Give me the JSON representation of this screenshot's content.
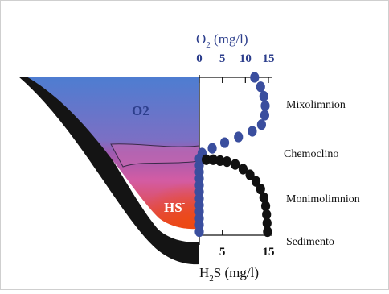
{
  "top_axis": {
    "label_main": "O",
    "label_sub": "2",
    "label_unit": " (mg/l)",
    "ticks": [
      {
        "value": 0,
        "label": "0"
      },
      {
        "value": 5,
        "label": "5"
      },
      {
        "value": 10,
        "label": "10"
      },
      {
        "value": 15,
        "label": "15"
      }
    ],
    "range": [
      0,
      15
    ]
  },
  "bottom_axis": {
    "label_main": "H",
    "label_sub": "2",
    "label_unit": "S (mg/l)",
    "ticks": [
      {
        "value": 5,
        "label": "5"
      },
      {
        "value": 15,
        "label": "15"
      }
    ],
    "range": [
      0,
      15
    ]
  },
  "layers": [
    {
      "id": "mixolimnion",
      "label": "Mixolimnion"
    },
    {
      "id": "chemocline",
      "label": "Chemoclino"
    },
    {
      "id": "monimolimnion",
      "label": "Monimolimnion"
    },
    {
      "id": "sediment",
      "label": "Sedimento"
    }
  ],
  "lake_labels": {
    "oxygen": "O2",
    "sulfide_main": "HS",
    "sulfide_charge": "-"
  },
  "colors": {
    "o2_dots": "#3a4e9e",
    "h2s_dots": "#111111",
    "text_blue": "#2c3e8c",
    "sediment": "#141414",
    "lake_top": "#4d7dd1",
    "lake_mid": "#9e5bb0",
    "lake_chemocline": "#d35ca4",
    "lake_bottom": "#e8431a"
  },
  "chart_data": {
    "type": "scatter",
    "depth_axis": "down (surface at top, sediment at bottom)",
    "series": [
      {
        "name": "O2",
        "x_unit": "mg/l",
        "points": [
          {
            "x": 12,
            "depth": 0.0
          },
          {
            "x": 13.3,
            "depth": 0.5
          },
          {
            "x": 14.0,
            "depth": 1.0
          },
          {
            "x": 14.3,
            "depth": 1.5
          },
          {
            "x": 14.2,
            "depth": 2.0
          },
          {
            "x": 13.5,
            "depth": 2.5
          },
          {
            "x": 11.5,
            "depth": 2.85
          },
          {
            "x": 8.5,
            "depth": 3.15
          },
          {
            "x": 5.5,
            "depth": 3.45
          },
          {
            "x": 2.8,
            "depth": 3.75
          },
          {
            "x": 0.6,
            "depth": 4.0
          },
          {
            "x": 0,
            "depth": 4.3
          },
          {
            "x": 0,
            "depth": 4.65
          },
          {
            "x": 0,
            "depth": 5.0
          },
          {
            "x": 0,
            "depth": 5.35
          },
          {
            "x": 0,
            "depth": 5.7
          },
          {
            "x": 0,
            "depth": 6.05
          },
          {
            "x": 0,
            "depth": 6.4
          },
          {
            "x": 0,
            "depth": 6.75
          },
          {
            "x": 0,
            "depth": 7.1
          },
          {
            "x": 0,
            "depth": 7.45
          },
          {
            "x": 0,
            "depth": 7.8
          },
          {
            "x": 0,
            "depth": 8.15
          }
        ]
      },
      {
        "name": "H2S",
        "x_unit": "mg/l",
        "points": [
          {
            "x": 1.5,
            "depth": 4.35
          },
          {
            "x": 3.0,
            "depth": 4.35
          },
          {
            "x": 4.5,
            "depth": 4.4
          },
          {
            "x": 6.0,
            "depth": 4.45
          },
          {
            "x": 7.8,
            "depth": 4.6
          },
          {
            "x": 9.5,
            "depth": 4.85
          },
          {
            "x": 11.0,
            "depth": 5.15
          },
          {
            "x": 12.3,
            "depth": 5.5
          },
          {
            "x": 13.3,
            "depth": 5.9
          },
          {
            "x": 14.0,
            "depth": 6.35
          },
          {
            "x": 14.4,
            "depth": 6.8
          },
          {
            "x": 14.6,
            "depth": 7.25
          },
          {
            "x": 14.7,
            "depth": 7.7
          },
          {
            "x": 14.8,
            "depth": 8.15
          }
        ]
      }
    ]
  }
}
